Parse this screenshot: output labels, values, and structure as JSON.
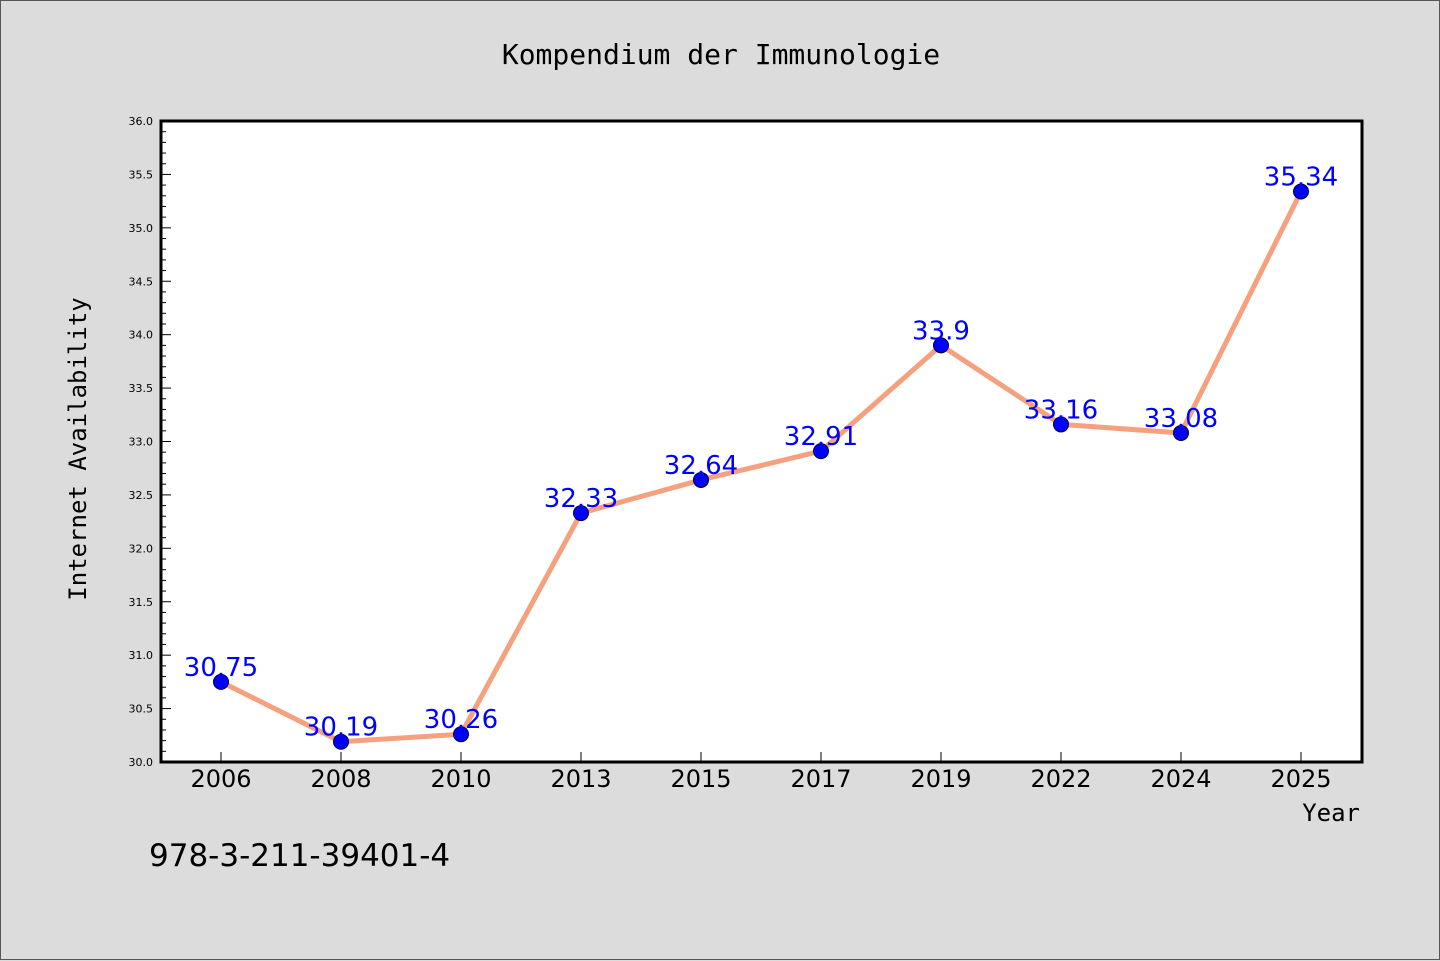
{
  "isbn": "978-3-211-39401-4",
  "colors": {
    "background": "#dcdcdc",
    "plot_background": "#ffffff",
    "line": "#f5a07e",
    "marker": "#0000ff",
    "data_label": "#0000ff",
    "text": "#000000"
  },
  "chart_data": {
    "type": "line",
    "title": "Kompendium der Immunologie",
    "xlabel": "Year",
    "ylabel": "Internet Availability",
    "categories": [
      "2006",
      "2008",
      "2010",
      "2013",
      "2015",
      "2017",
      "2019",
      "2022",
      "2024",
      "2025"
    ],
    "series": [
      {
        "values": [
          30.75,
          30.19,
          30.26,
          32.33,
          32.64,
          32.91,
          33.9,
          33.16,
          33.08,
          35.34
        ],
        "labels": [
          "30.75",
          "30.19",
          "30.26",
          "32.33",
          "32.64",
          "32.91",
          "33.9",
          "33.16",
          "33.08",
          "35.34"
        ]
      }
    ],
    "ylim": [
      30.0,
      36.0
    ],
    "yticks": [
      "30.0",
      "30.5",
      "31.0",
      "31.5",
      "32.0",
      "32.5",
      "33.0",
      "33.5",
      "34.0",
      "34.5",
      "35.0",
      "35.5",
      "36.0"
    ],
    "grid": false,
    "legend": "none"
  }
}
